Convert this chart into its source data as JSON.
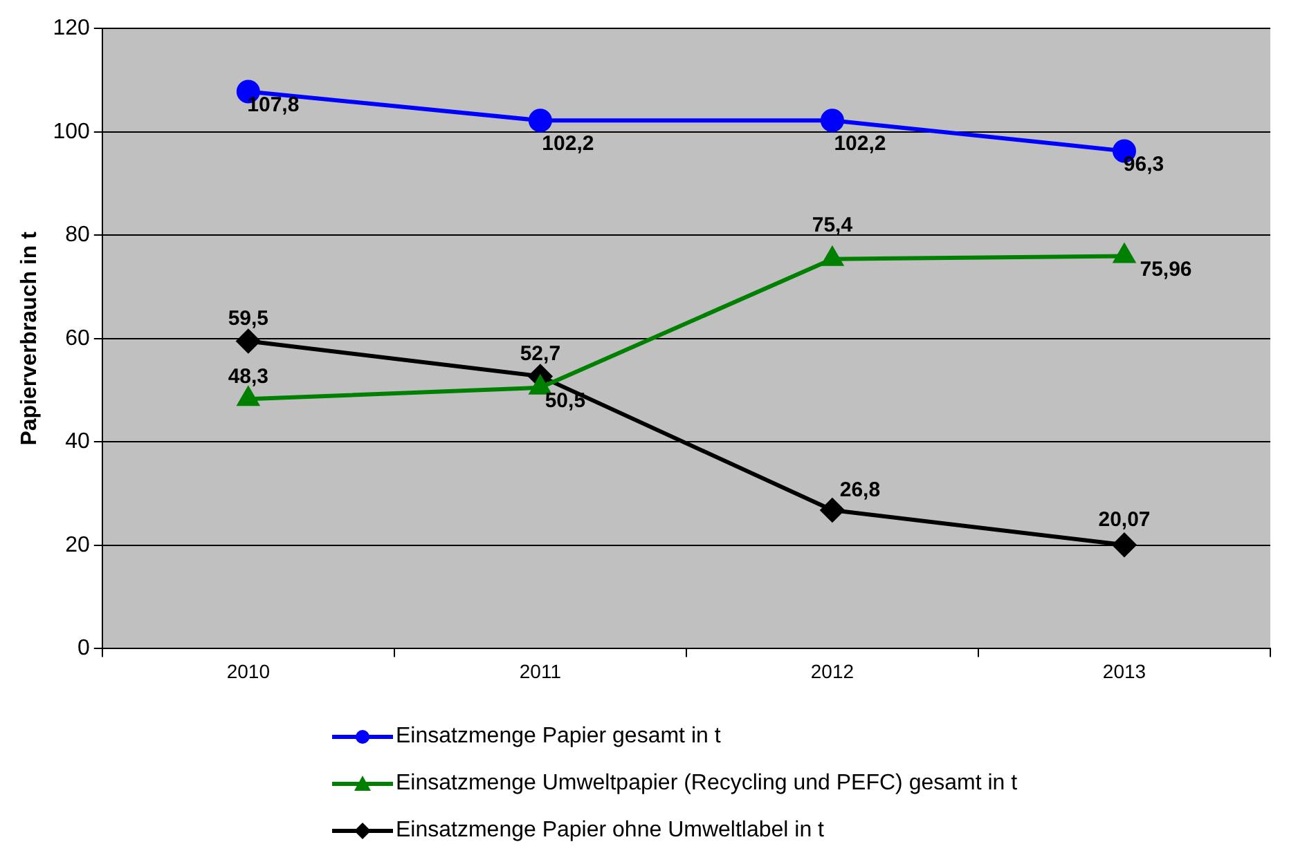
{
  "chart_data": {
    "type": "line",
    "ylabel": "Papierverbrauch in t",
    "categories": [
      "2010",
      "2011",
      "2012",
      "2013"
    ],
    "ylim": [
      0,
      120
    ],
    "yticks": [
      0,
      20,
      40,
      60,
      80,
      100,
      120
    ],
    "grid": "y",
    "legend": "bottom",
    "line_style": "solid",
    "series": [
      {
        "name": "Einsatzmenge Papier gesamt in t",
        "color": "#0000ff",
        "marker": "circle",
        "values": [
          107.8,
          102.2,
          102.2,
          96.3
        ],
        "value_labels": [
          "107,8",
          "102,2",
          "102,2",
          "96,3"
        ]
      },
      {
        "name": "Einsatzmenge Umweltpapier (Recycling und PEFC) gesamt in t",
        "color": "#008000",
        "marker": "triangle",
        "values": [
          48.3,
          50.5,
          75.4,
          75.96
        ],
        "value_labels": [
          "48,3",
          "50,5",
          "75,4",
          "75,96"
        ]
      },
      {
        "name": "Einsatzmenge Papier ohne Umweltlabel in t",
        "color": "#000000",
        "marker": "diamond",
        "values": [
          59.5,
          52.7,
          26.8,
          20.07
        ],
        "value_labels": [
          "59,5",
          "52,7",
          "26,8",
          "20,07"
        ]
      }
    ]
  }
}
